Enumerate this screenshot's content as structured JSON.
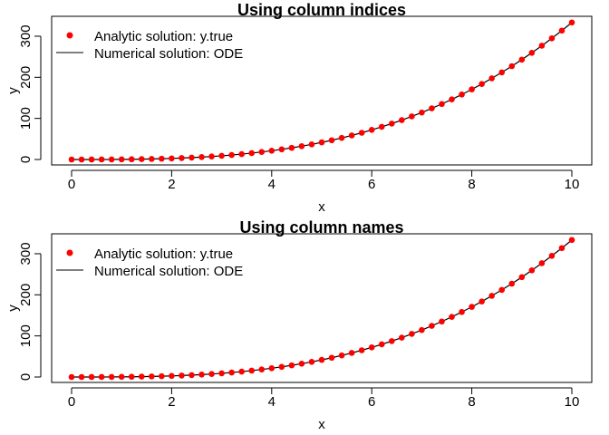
{
  "chart_data": [
    {
      "type": "scatter",
      "title": "Using column indices",
      "xlabel": "x",
      "ylabel": "y",
      "xlim": [
        0,
        10
      ],
      "ylim": [
        0,
        333
      ],
      "xticks": [
        "0",
        "2",
        "4",
        "6",
        "8",
        "10"
      ],
      "yticks": [
        "0",
        "100",
        "200",
        "300"
      ],
      "legend": [
        "Analytic solution: y.true",
        "Numerical solution: ODE"
      ],
      "legend_position": "top-left",
      "series": [
        {
          "name": "Analytic solution: y.true",
          "style": "points",
          "color": "#ff0000",
          "x": [
            0,
            0.2,
            0.4,
            0.6,
            0.8,
            1,
            1.2,
            1.4,
            1.6,
            1.8,
            2,
            2.2,
            2.4,
            2.6,
            2.8,
            3,
            3.2,
            3.4,
            3.6,
            3.8,
            4,
            4.2,
            4.4,
            4.6,
            4.8,
            5,
            5.2,
            5.4,
            5.6,
            5.8,
            6,
            6.2,
            6.4,
            6.6,
            6.8,
            7,
            7.2,
            7.4,
            7.6,
            7.8,
            8,
            8.2,
            8.4,
            8.6,
            8.8,
            9,
            9.2,
            9.4,
            9.6,
            9.8,
            10
          ],
          "y": [
            0,
            0,
            0.03,
            0.07,
            0.17,
            0.33,
            0.58,
            0.91,
            1.37,
            1.94,
            2.67,
            3.55,
            4.61,
            5.86,
            7.32,
            9,
            10.92,
            13.1,
            15.55,
            18.29,
            21.33,
            24.7,
            28.39,
            32.45,
            36.86,
            41.67,
            46.87,
            52.49,
            58.54,
            65.04,
            72,
            79.44,
            87.38,
            95.83,
            104.81,
            114.33,
            124.42,
            135.08,
            146.33,
            158.2,
            170.67,
            183.79,
            197.57,
            212,
            227.12,
            243,
            259.57,
            276.85,
            294.91,
            313.71,
            333.33
          ]
        },
        {
          "name": "Numerical solution: ODE",
          "style": "line",
          "color": "#000000",
          "x": [
            0,
            0.2,
            0.4,
            0.6,
            0.8,
            1,
            1.2,
            1.4,
            1.6,
            1.8,
            2,
            2.2,
            2.4,
            2.6,
            2.8,
            3,
            3.2,
            3.4,
            3.6,
            3.8,
            4,
            4.2,
            4.4,
            4.6,
            4.8,
            5,
            5.2,
            5.4,
            5.6,
            5.8,
            6,
            6.2,
            6.4,
            6.6,
            6.8,
            7,
            7.2,
            7.4,
            7.6,
            7.8,
            8,
            8.2,
            8.4,
            8.6,
            8.8,
            9,
            9.2,
            9.4,
            9.6,
            9.8,
            10
          ],
          "y": [
            0,
            0,
            0.03,
            0.07,
            0.17,
            0.33,
            0.58,
            0.91,
            1.37,
            1.94,
            2.67,
            3.55,
            4.61,
            5.86,
            7.32,
            9,
            10.92,
            13.1,
            15.55,
            18.29,
            21.33,
            24.7,
            28.39,
            32.45,
            36.86,
            41.67,
            46.87,
            52.49,
            58.54,
            65.04,
            72,
            79.44,
            87.38,
            95.83,
            104.81,
            114.33,
            124.42,
            135.08,
            146.33,
            158.2,
            170.67,
            183.79,
            197.57,
            212,
            227.12,
            243,
            259.57,
            276.85,
            294.91,
            313.71,
            333.33
          ]
        }
      ]
    },
    {
      "type": "scatter",
      "title": "Using column names",
      "xlabel": "x",
      "ylabel": "y",
      "xlim": [
        0,
        10
      ],
      "ylim": [
        0,
        333
      ],
      "xticks": [
        "0",
        "2",
        "4",
        "6",
        "8",
        "10"
      ],
      "yticks": [
        "0",
        "100",
        "200",
        "300"
      ],
      "legend": [
        "Analytic solution: y.true",
        "Numerical solution: ODE"
      ],
      "legend_position": "top-left",
      "series": [
        {
          "name": "Analytic solution: y.true",
          "style": "points",
          "color": "#ff0000",
          "x": [
            0,
            0.2,
            0.4,
            0.6,
            0.8,
            1,
            1.2,
            1.4,
            1.6,
            1.8,
            2,
            2.2,
            2.4,
            2.6,
            2.8,
            3,
            3.2,
            3.4,
            3.6,
            3.8,
            4,
            4.2,
            4.4,
            4.6,
            4.8,
            5,
            5.2,
            5.4,
            5.6,
            5.8,
            6,
            6.2,
            6.4,
            6.6,
            6.8,
            7,
            7.2,
            7.4,
            7.6,
            7.8,
            8,
            8.2,
            8.4,
            8.6,
            8.8,
            9,
            9.2,
            9.4,
            9.6,
            9.8,
            10
          ],
          "y": [
            0,
            0,
            0.03,
            0.07,
            0.17,
            0.33,
            0.58,
            0.91,
            1.37,
            1.94,
            2.67,
            3.55,
            4.61,
            5.86,
            7.32,
            9,
            10.92,
            13.1,
            15.55,
            18.29,
            21.33,
            24.7,
            28.39,
            32.45,
            36.86,
            41.67,
            46.87,
            52.49,
            58.54,
            65.04,
            72,
            79.44,
            87.38,
            95.83,
            104.81,
            114.33,
            124.42,
            135.08,
            146.33,
            158.2,
            170.67,
            183.79,
            197.57,
            212,
            227.12,
            243,
            259.57,
            276.85,
            294.91,
            313.71,
            333.33
          ]
        },
        {
          "name": "Numerical solution: ODE",
          "style": "line",
          "color": "#000000",
          "x": [
            0,
            0.2,
            0.4,
            0.6,
            0.8,
            1,
            1.2,
            1.4,
            1.6,
            1.8,
            2,
            2.2,
            2.4,
            2.6,
            2.8,
            3,
            3.2,
            3.4,
            3.6,
            3.8,
            4,
            4.2,
            4.4,
            4.6,
            4.8,
            5,
            5.2,
            5.4,
            5.6,
            5.8,
            6,
            6.2,
            6.4,
            6.6,
            6.8,
            7,
            7.2,
            7.4,
            7.6,
            7.8,
            8,
            8.2,
            8.4,
            8.6,
            8.8,
            9,
            9.2,
            9.4,
            9.6,
            9.8,
            10
          ],
          "y": [
            0,
            0,
            0.03,
            0.07,
            0.17,
            0.33,
            0.58,
            0.91,
            1.37,
            1.94,
            2.67,
            3.55,
            4.61,
            5.86,
            7.32,
            9,
            10.92,
            13.1,
            15.55,
            18.29,
            21.33,
            24.7,
            28.39,
            32.45,
            36.86,
            41.67,
            46.87,
            52.49,
            58.54,
            65.04,
            72,
            79.44,
            87.38,
            95.83,
            104.81,
            114.33,
            124.42,
            135.08,
            146.33,
            158.2,
            170.67,
            183.79,
            197.57,
            212,
            227.12,
            243,
            259.57,
            276.85,
            294.91,
            313.71,
            333.33
          ]
        }
      ]
    }
  ]
}
